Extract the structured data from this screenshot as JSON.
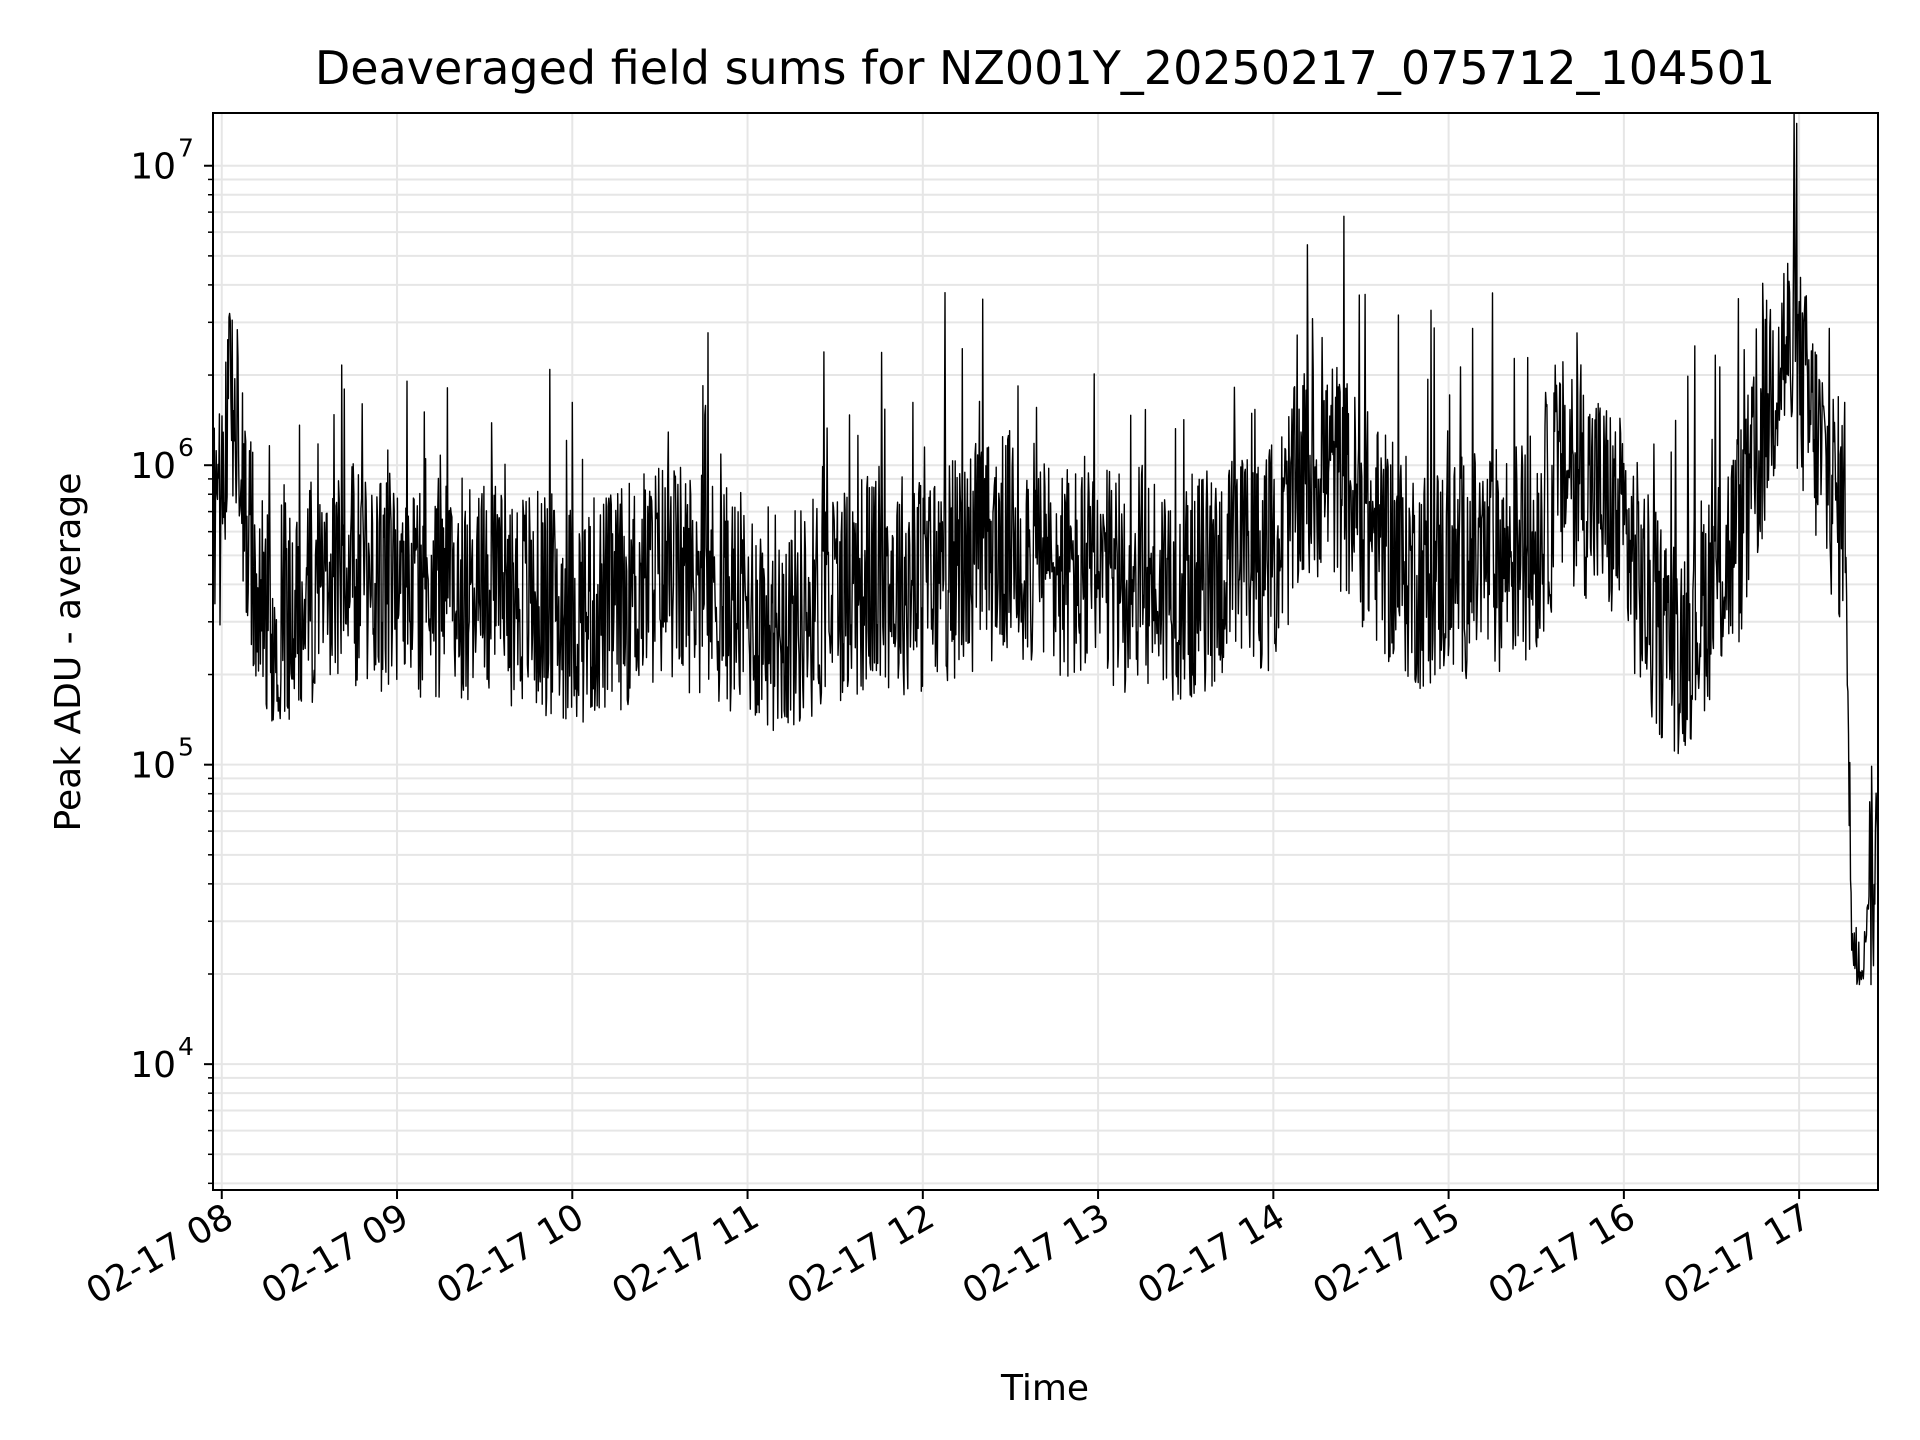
{
  "chart_data": {
    "type": "line",
    "title": "Deaveraged field sums for NZ001Y_20250217_075712_104501",
    "xlabel": "Time",
    "ylabel": "Peak ADU - average",
    "yscale": "log",
    "ylim": [
      3800,
      15000000
    ],
    "xlim": [
      "2025-02-17 07:57",
      "2025-02-17 17:27"
    ],
    "grid": true,
    "line_color": "#000000",
    "grid_color": "#e6e6e6",
    "x_ticks": [
      {
        "value": "2025-02-17 08:00",
        "label": "02-17 08"
      },
      {
        "value": "2025-02-17 09:00",
        "label": "02-17 09"
      },
      {
        "value": "2025-02-17 10:00",
        "label": "02-17 10"
      },
      {
        "value": "2025-02-17 11:00",
        "label": "02-17 11"
      },
      {
        "value": "2025-02-17 12:00",
        "label": "02-17 12"
      },
      {
        "value": "2025-02-17 13:00",
        "label": "02-17 13"
      },
      {
        "value": "2025-02-17 14:00",
        "label": "02-17 14"
      },
      {
        "value": "2025-02-17 15:00",
        "label": "02-17 15"
      },
      {
        "value": "2025-02-17 16:00",
        "label": "02-17 16"
      },
      {
        "value": "2025-02-17 17:00",
        "label": "02-17 17"
      }
    ],
    "y_ticks": [
      {
        "value": 10000,
        "base": "10",
        "exp": "4"
      },
      {
        "value": 100000,
        "base": "10",
        "exp": "5"
      },
      {
        "value": 1000000,
        "base": "10",
        "exp": "6"
      },
      {
        "value": 10000000,
        "base": "10",
        "exp": "7"
      }
    ],
    "series": [
      {
        "x": [
          "2025-02-17 07:57",
          "2025-02-17 08:00",
          "2025-02-17 08:03",
          "2025-02-17 08:06",
          "2025-02-17 08:10",
          "2025-02-17 08:15",
          "2025-02-17 08:20",
          "2025-02-17 08:30",
          "2025-02-17 08:40",
          "2025-02-17 08:50",
          "2025-02-17 09:00",
          "2025-02-17 09:15",
          "2025-02-17 09:30",
          "2025-02-17 09:45",
          "2025-02-17 10:00",
          "2025-02-17 10:15",
          "2025-02-17 10:30",
          "2025-02-17 10:45",
          "2025-02-17 11:00",
          "2025-02-17 11:15",
          "2025-02-17 11:30",
          "2025-02-17 11:45",
          "2025-02-17 12:00",
          "2025-02-17 12:15",
          "2025-02-17 12:30",
          "2025-02-17 12:45",
          "2025-02-17 13:00",
          "2025-02-17 13:15",
          "2025-02-17 13:30",
          "2025-02-17 13:45",
          "2025-02-17 14:00",
          "2025-02-17 14:10",
          "2025-02-17 14:20",
          "2025-02-17 14:30",
          "2025-02-17 14:40",
          "2025-02-17 14:50",
          "2025-02-17 15:00",
          "2025-02-17 15:15",
          "2025-02-17 15:30",
          "2025-02-17 15:40",
          "2025-02-17 15:50",
          "2025-02-17 16:00",
          "2025-02-17 16:10",
          "2025-02-17 16:20",
          "2025-02-17 16:30",
          "2025-02-17 16:40",
          "2025-02-17 16:45",
          "2025-02-17 16:50",
          "2025-02-17 16:55",
          "2025-02-17 17:00",
          "2025-02-17 17:05",
          "2025-02-17 17:10",
          "2025-02-17 17:14",
          "2025-02-17 17:16",
          "2025-02-17 17:18",
          "2025-02-17 17:20",
          "2025-02-17 17:22",
          "2025-02-17 17:24",
          "2025-02-17 17:26"
        ],
        "y": [
          600000,
          700000,
          2000000,
          900000,
          500000,
          350000,
          300000,
          380000,
          450000,
          400000,
          420000,
          380000,
          400000,
          360000,
          320000,
          350000,
          450000,
          400000,
          330000,
          300000,
          380000,
          420000,
          400000,
          480000,
          550000,
          450000,
          400000,
          420000,
          380000,
          450000,
          500000,
          900000,
          1000000,
          700000,
          500000,
          420000,
          450000,
          480000,
          550000,
          1000000,
          800000,
          600000,
          300000,
          250000,
          400000,
          600000,
          900000,
          1800000,
          2500000,
          2000000,
          1300000,
          900000,
          700000,
          800000,
          25000,
          20000,
          22000,
          40000,
          45000
        ]
      }
    ]
  }
}
